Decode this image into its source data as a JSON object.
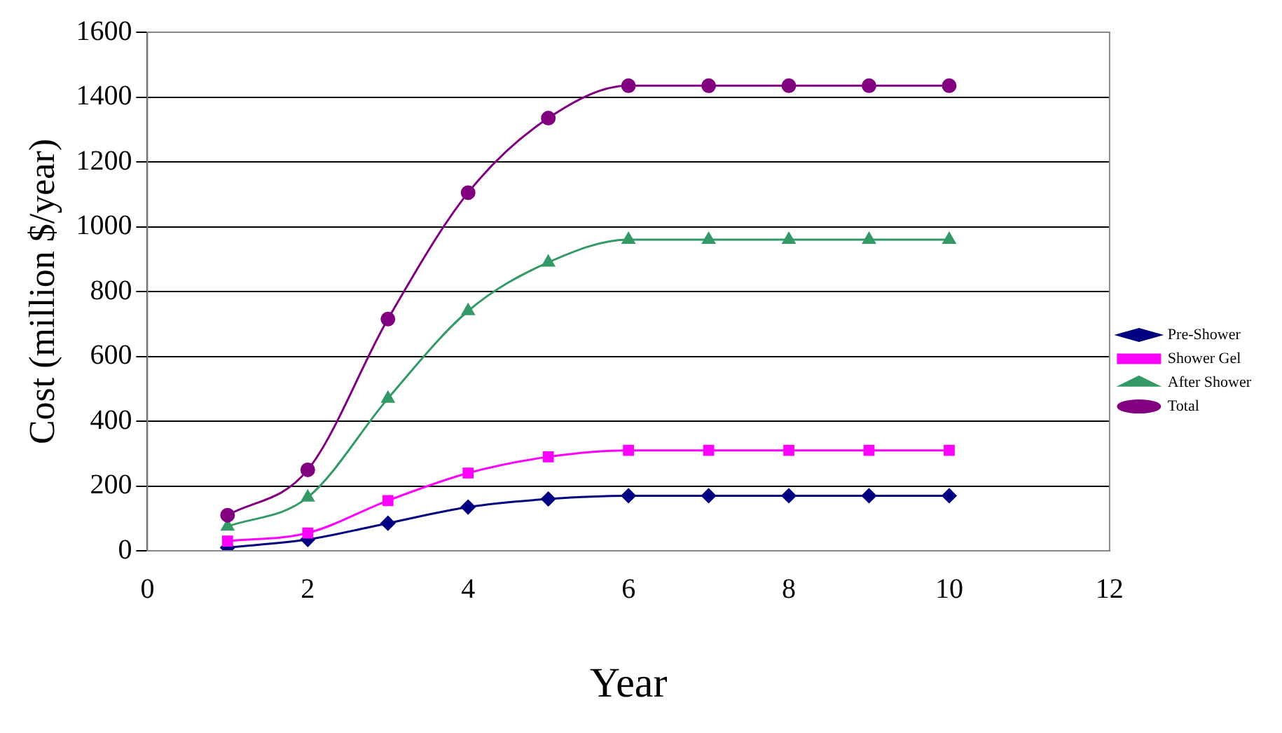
{
  "chart_data": {
    "type": "line",
    "xlabel": "Year",
    "ylabel": "Cost (million $/year)",
    "x": [
      1,
      2,
      3,
      4,
      5,
      6,
      7,
      8,
      9,
      10
    ],
    "series": [
      {
        "name": "Pre-Shower",
        "color": "#000080",
        "marker": "diamond",
        "values": [
          10,
          35,
          85,
          135,
          160,
          170,
          170,
          170,
          170,
          170
        ]
      },
      {
        "name": "Shower Gel",
        "color": "#ff00ff",
        "marker": "square",
        "values": [
          30,
          55,
          155,
          240,
          290,
          310,
          310,
          310,
          310,
          310
        ]
      },
      {
        "name": "After Shower",
        "color": "#339966",
        "marker": "triangle",
        "values": [
          75,
          165,
          470,
          740,
          890,
          960,
          960,
          960,
          960,
          960
        ]
      },
      {
        "name": "Total",
        "color": "#800080",
        "marker": "circle",
        "values": [
          110,
          250,
          715,
          1105,
          1335,
          1435,
          1435,
          1435,
          1435,
          1435
        ]
      }
    ],
    "xlim": [
      0,
      12
    ],
    "xticks": [
      0,
      2,
      4,
      6,
      8,
      10,
      12
    ],
    "ylim": [
      0,
      1600
    ],
    "yticks": [
      0,
      200,
      400,
      600,
      800,
      1000,
      1200,
      1400,
      1600
    ],
    "grid": "y",
    "legend": "right"
  }
}
